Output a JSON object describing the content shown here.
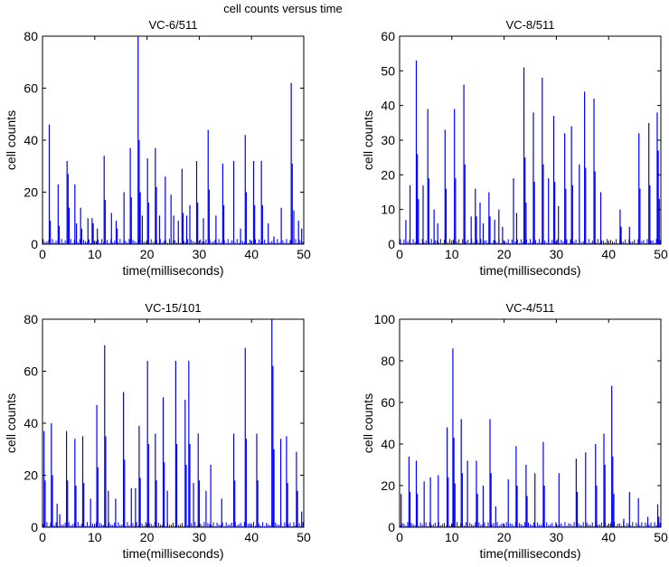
{
  "suptitle": "cell counts versus time",
  "chart_data": [
    {
      "type": "bar",
      "title": "VC-6/511",
      "xlabel": "time(milliseconds)",
      "ylabel": "cell counts",
      "xlim": [
        0,
        50
      ],
      "ylim": [
        0,
        80
      ],
      "xticks": [
        0,
        10,
        20,
        30,
        40,
        50
      ],
      "yticks": [
        0,
        20,
        40,
        60,
        80
      ],
      "bar_color": "#0000ff",
      "spikes": [
        [
          1.3,
          46
        ],
        [
          1.5,
          9
        ],
        [
          3.0,
          23
        ],
        [
          3.2,
          7
        ],
        [
          4.7,
          32
        ],
        [
          4.9,
          27
        ],
        [
          5.1,
          14
        ],
        [
          6.2,
          23
        ],
        [
          6.5,
          8
        ],
        [
          7.3,
          14
        ],
        [
          7.5,
          6
        ],
        [
          8.7,
          10
        ],
        [
          9.5,
          10
        ],
        [
          9.7,
          8
        ],
        [
          10.5,
          6
        ],
        [
          11.8,
          34
        ],
        [
          12.0,
          17
        ],
        [
          13.2,
          12
        ],
        [
          14.1,
          9
        ],
        [
          14.3,
          6
        ],
        [
          15.6,
          20
        ],
        [
          16.8,
          37
        ],
        [
          17.0,
          18
        ],
        [
          18.3,
          80
        ],
        [
          18.5,
          40
        ],
        [
          18.7,
          20
        ],
        [
          19.1,
          11
        ],
        [
          20.1,
          33
        ],
        [
          20.3,
          16
        ],
        [
          21.6,
          37
        ],
        [
          21.8,
          22
        ],
        [
          22.4,
          11
        ],
        [
          23.5,
          26
        ],
        [
          24.6,
          19
        ],
        [
          25.1,
          11
        ],
        [
          26.0,
          9
        ],
        [
          26.7,
          29
        ],
        [
          26.9,
          12
        ],
        [
          27.6,
          11
        ],
        [
          28.2,
          15
        ],
        [
          29.5,
          32
        ],
        [
          29.7,
          16
        ],
        [
          30.8,
          10
        ],
        [
          31.7,
          44
        ],
        [
          31.9,
          21
        ],
        [
          33.2,
          11
        ],
        [
          34.5,
          31
        ],
        [
          34.7,
          15
        ],
        [
          36.6,
          32
        ],
        [
          37.9,
          6
        ],
        [
          38.8,
          42
        ],
        [
          39.0,
          20
        ],
        [
          40.4,
          32
        ],
        [
          40.6,
          15
        ],
        [
          41.9,
          32
        ],
        [
          42.1,
          15
        ],
        [
          43.2,
          8
        ],
        [
          44.3,
          3
        ],
        [
          45.7,
          14
        ],
        [
          47.6,
          62
        ],
        [
          47.8,
          31
        ],
        [
          48.1,
          13
        ],
        [
          49.0,
          9
        ],
        [
          49.6,
          6
        ]
      ]
    },
    {
      "type": "bar",
      "title": "VC-8/511",
      "xlabel": "time(milliseconds)",
      "ylabel": "cell counts",
      "xlim": [
        0,
        50
      ],
      "ylim": [
        0,
        60
      ],
      "xticks": [
        0,
        10,
        20,
        30,
        40,
        50
      ],
      "yticks": [
        0,
        10,
        20,
        30,
        40,
        50,
        60
      ],
      "bar_color": "#0000ff",
      "spikes": [
        [
          1.2,
          7
        ],
        [
          2.0,
          17
        ],
        [
          3.2,
          53
        ],
        [
          3.4,
          26
        ],
        [
          3.6,
          13
        ],
        [
          4.5,
          17
        ],
        [
          5.4,
          39
        ],
        [
          5.6,
          19
        ],
        [
          6.6,
          10
        ],
        [
          7.3,
          6
        ],
        [
          8.7,
          33
        ],
        [
          8.9,
          16
        ],
        [
          10.5,
          39
        ],
        [
          10.7,
          19
        ],
        [
          12.3,
          46
        ],
        [
          12.5,
          23
        ],
        [
          13.7,
          8
        ],
        [
          14.5,
          16
        ],
        [
          14.7,
          8
        ],
        [
          15.4,
          12
        ],
        [
          16.0,
          6
        ],
        [
          17.1,
          15
        ],
        [
          17.3,
          8
        ],
        [
          18.2,
          7
        ],
        [
          19.0,
          10
        ],
        [
          19.7,
          5
        ],
        [
          21.8,
          19
        ],
        [
          22.4,
          9
        ],
        [
          23.8,
          51
        ],
        [
          24.0,
          25
        ],
        [
          24.2,
          12
        ],
        [
          25.6,
          38
        ],
        [
          25.8,
          18
        ],
        [
          27.3,
          48
        ],
        [
          27.5,
          23
        ],
        [
          28.5,
          19
        ],
        [
          29.5,
          37
        ],
        [
          29.7,
          18
        ],
        [
          30.4,
          11
        ],
        [
          31.6,
          32
        ],
        [
          31.8,
          16
        ],
        [
          32.9,
          34
        ],
        [
          33.1,
          17
        ],
        [
          34.4,
          23
        ],
        [
          35.4,
          44
        ],
        [
          35.6,
          22
        ],
        [
          37.2,
          42
        ],
        [
          37.4,
          21
        ],
        [
          38.5,
          15
        ],
        [
          42.2,
          10
        ],
        [
          42.4,
          5
        ],
        [
          44.0,
          5
        ],
        [
          45.8,
          32
        ],
        [
          46.0,
          16
        ],
        [
          47.7,
          35
        ],
        [
          47.9,
          17
        ],
        [
          49.3,
          38
        ],
        [
          49.5,
          27
        ],
        [
          49.7,
          13
        ]
      ]
    },
    {
      "type": "bar",
      "title": "VC-15/101",
      "xlabel": "time(milliseconds)",
      "ylabel": "cell counts",
      "xlim": [
        0,
        50
      ],
      "ylim": [
        0,
        80
      ],
      "xticks": [
        0,
        10,
        20,
        30,
        40,
        50
      ],
      "yticks": [
        0,
        20,
        40,
        60,
        80
      ],
      "bar_color": "#0000ff",
      "spikes": [
        [
          0.3,
          37
        ],
        [
          0.5,
          18
        ],
        [
          1.7,
          40
        ],
        [
          1.9,
          20
        ],
        [
          2.8,
          9
        ],
        [
          3.3,
          5
        ],
        [
          4.6,
          37
        ],
        [
          4.8,
          18
        ],
        [
          6.2,
          34
        ],
        [
          6.4,
          16
        ],
        [
          7.7,
          35
        ],
        [
          7.9,
          17
        ],
        [
          9.2,
          11
        ],
        [
          10.4,
          47
        ],
        [
          10.6,
          23
        ],
        [
          11.9,
          70
        ],
        [
          12.1,
          35
        ],
        [
          12.6,
          14
        ],
        [
          14.0,
          11
        ],
        [
          15.5,
          52
        ],
        [
          15.7,
          26
        ],
        [
          17.0,
          15
        ],
        [
          17.8,
          15
        ],
        [
          18.5,
          39
        ],
        [
          18.7,
          19
        ],
        [
          20.1,
          64
        ],
        [
          20.3,
          32
        ],
        [
          21.6,
          36
        ],
        [
          21.8,
          18
        ],
        [
          23.1,
          50
        ],
        [
          23.3,
          25
        ],
        [
          23.9,
          14
        ],
        [
          25.5,
          64
        ],
        [
          25.7,
          32
        ],
        [
          27.3,
          49
        ],
        [
          27.5,
          24
        ],
        [
          28.0,
          64
        ],
        [
          28.2,
          32
        ],
        [
          28.9,
          17
        ],
        [
          29.8,
          36
        ],
        [
          30.0,
          18
        ],
        [
          31.3,
          14
        ],
        [
          32.2,
          24
        ],
        [
          34.3,
          11
        ],
        [
          36.6,
          36
        ],
        [
          36.8,
          18
        ],
        [
          38.8,
          69
        ],
        [
          39.0,
          34
        ],
        [
          41.0,
          36
        ],
        [
          41.2,
          18
        ],
        [
          43.9,
          80
        ],
        [
          44.1,
          62
        ],
        [
          44.3,
          30
        ],
        [
          45.6,
          34
        ],
        [
          46.7,
          35
        ],
        [
          46.9,
          17
        ],
        [
          48.6,
          29
        ],
        [
          48.8,
          14
        ],
        [
          49.6,
          6
        ]
      ]
    },
    {
      "type": "bar",
      "title": "VC-4/511",
      "xlabel": "time(milliseconds)",
      "ylabel": "cell counts",
      "xlim": [
        0,
        50
      ],
      "ylim": [
        0,
        100
      ],
      "xticks": [
        0,
        10,
        20,
        30,
        40,
        50
      ],
      "yticks": [
        0,
        20,
        40,
        60,
        80,
        100
      ],
      "bar_color": "#0000ff",
      "spikes": [
        [
          0.3,
          16
        ],
        [
          1.8,
          34
        ],
        [
          2.0,
          17
        ],
        [
          3.2,
          32
        ],
        [
          3.4,
          16
        ],
        [
          4.7,
          22
        ],
        [
          5.9,
          24
        ],
        [
          7.4,
          25
        ],
        [
          9.1,
          48
        ],
        [
          9.3,
          24
        ],
        [
          10.2,
          86
        ],
        [
          10.4,
          43
        ],
        [
          10.6,
          21
        ],
        [
          11.8,
          52
        ],
        [
          12.0,
          26
        ],
        [
          13.0,
          32
        ],
        [
          14.7,
          32
        ],
        [
          14.9,
          16
        ],
        [
          16.0,
          20
        ],
        [
          17.3,
          52
        ],
        [
          17.5,
          26
        ],
        [
          18.4,
          10
        ],
        [
          20.8,
          23
        ],
        [
          22.3,
          39
        ],
        [
          22.5,
          20
        ],
        [
          24.2,
          30
        ],
        [
          24.4,
          15
        ],
        [
          25.9,
          26
        ],
        [
          27.5,
          41
        ],
        [
          27.7,
          20
        ],
        [
          30.5,
          26
        ],
        [
          33.8,
          33
        ],
        [
          34.0,
          17
        ],
        [
          35.6,
          36
        ],
        [
          37.5,
          40
        ],
        [
          37.7,
          20
        ],
        [
          39.1,
          45
        ],
        [
          39.3,
          30
        ],
        [
          40.6,
          68
        ],
        [
          40.8,
          34
        ],
        [
          41.0,
          16
        ],
        [
          42.9,
          4
        ],
        [
          44.0,
          17
        ],
        [
          45.7,
          14
        ],
        [
          47.5,
          5
        ],
        [
          49.4,
          11
        ],
        [
          49.6,
          5
        ]
      ]
    }
  ]
}
